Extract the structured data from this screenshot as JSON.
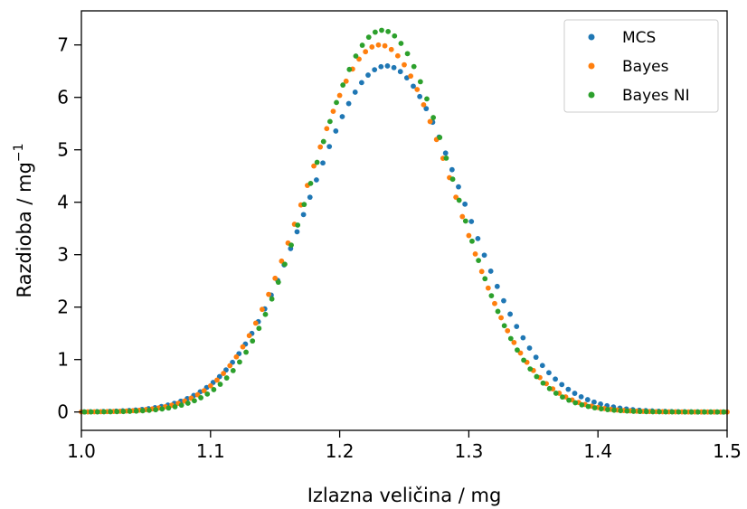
{
  "chart_data": {
    "type": "scatter",
    "xlabel": "Izlazna veličina / mg",
    "ylabel_main": "Razdioba / mg",
    "ylabel_sup": "−1",
    "xlim": [
      1.0,
      1.5
    ],
    "ylim": [
      -0.35,
      7.65
    ],
    "xticks": [
      1.0,
      1.1,
      1.2,
      1.3,
      1.4,
      1.5
    ],
    "xtick_labels": [
      "1.0",
      "1.1",
      "1.2",
      "1.3",
      "1.4",
      "1.5"
    ],
    "yticks": [
      0,
      1,
      2,
      3,
      4,
      5,
      6,
      7
    ],
    "ytick_labels": [
      "0",
      "1",
      "2",
      "3",
      "4",
      "5",
      "6",
      "7"
    ],
    "grid": false,
    "legend_position": "top-right",
    "series": [
      {
        "name": "MCS",
        "color": "#1f77b4",
        "distribution": "gaussian",
        "peak_x": 1.236,
        "peak_y": 6.6,
        "sigma": 0.0604,
        "x_start": 1.002,
        "x_step": 0.005,
        "n_points": 100
      },
      {
        "name": "Bayes",
        "color": "#ff7f0e",
        "distribution": "gaussian",
        "peak_x": 1.231,
        "peak_y": 7.0,
        "sigma": 0.057,
        "x_start": 1.0,
        "x_step": 0.005,
        "n_points": 101
      },
      {
        "name": "Bayes NI",
        "color": "#2ca02c",
        "distribution": "gaussian",
        "peak_x": 1.233,
        "peak_y": 7.28,
        "sigma": 0.0548,
        "x_start": 1.0025,
        "x_step": 0.005,
        "n_points": 100
      }
    ]
  }
}
